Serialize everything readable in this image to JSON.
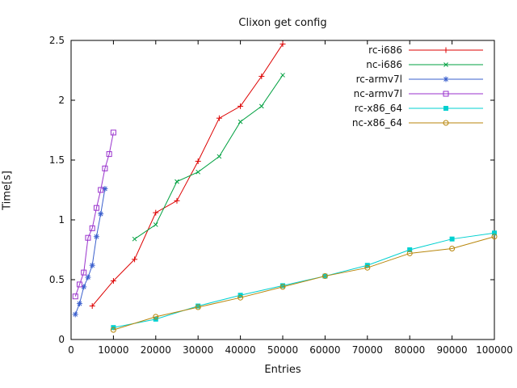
{
  "chart_data": {
    "type": "line",
    "title": "Clixon get config",
    "xlabel": "Entries",
    "ylabel": "Time[s]",
    "xlim": [
      0,
      100000
    ],
    "ylim": [
      0,
      2.5
    ],
    "grid": false,
    "legend_position": "top-right-inside",
    "x_ticks": [
      {
        "v": 0,
        "label": "0"
      },
      {
        "v": 10000,
        "label": "10000"
      },
      {
        "v": 20000,
        "label": "20000"
      },
      {
        "v": 30000,
        "label": "30000"
      },
      {
        "v": 40000,
        "label": "40000"
      },
      {
        "v": 50000,
        "label": "50000"
      },
      {
        "v": 60000,
        "label": "60000"
      },
      {
        "v": 70000,
        "label": "70000"
      },
      {
        "v": 80000,
        "label": "80000"
      },
      {
        "v": 90000,
        "label": "90000"
      },
      {
        "v": 100000,
        "label": "100000"
      }
    ],
    "y_ticks": [
      {
        "v": 0,
        "label": "0"
      },
      {
        "v": 0.5,
        "label": "0.5"
      },
      {
        "v": 1,
        "label": "1"
      },
      {
        "v": 1.5,
        "label": "1.5"
      },
      {
        "v": 2,
        "label": "2"
      },
      {
        "v": 2.5,
        "label": "2.5"
      }
    ],
    "series": [
      {
        "name": "rc-i686",
        "color": "#dd0000",
        "marker": "plus",
        "points": [
          [
            5000,
            0.28
          ],
          [
            10000,
            0.49
          ],
          [
            15000,
            0.67
          ],
          [
            20000,
            1.06
          ],
          [
            25000,
            1.16
          ],
          [
            30000,
            1.49
          ],
          [
            35000,
            1.85
          ],
          [
            40000,
            1.95
          ],
          [
            45000,
            2.2
          ],
          [
            50000,
            2.47
          ]
        ]
      },
      {
        "name": "nc-i686",
        "color": "#00a040",
        "marker": "cross",
        "points": [
          [
            15000,
            0.84
          ],
          [
            20000,
            0.96
          ],
          [
            25000,
            1.32
          ],
          [
            30000,
            1.4
          ],
          [
            35000,
            1.53
          ],
          [
            40000,
            1.82
          ],
          [
            45000,
            1.95
          ],
          [
            50000,
            2.21
          ]
        ]
      },
      {
        "name": "rc-armv7l",
        "color": "#3a5fcd",
        "marker": "asterisk",
        "points": [
          [
            1000,
            0.21
          ],
          [
            2000,
            0.3
          ],
          [
            3000,
            0.44
          ],
          [
            4000,
            0.52
          ],
          [
            5000,
            0.62
          ],
          [
            6000,
            0.86
          ],
          [
            7000,
            1.05
          ],
          [
            8000,
            1.26
          ]
        ]
      },
      {
        "name": "nc-armv7l",
        "color": "#9932cc",
        "marker": "square-open",
        "points": [
          [
            1000,
            0.36
          ],
          [
            2000,
            0.46
          ],
          [
            3000,
            0.56
          ],
          [
            4000,
            0.85
          ],
          [
            5000,
            0.93
          ],
          [
            6000,
            1.1
          ],
          [
            7000,
            1.25
          ],
          [
            8000,
            1.43
          ],
          [
            9000,
            1.55
          ],
          [
            10000,
            1.73
          ]
        ]
      },
      {
        "name": "rc-x86_64",
        "color": "#00d0d0",
        "marker": "square-filled",
        "points": [
          [
            10000,
            0.1
          ],
          [
            20000,
            0.17
          ],
          [
            30000,
            0.28
          ],
          [
            40000,
            0.37
          ],
          [
            50000,
            0.45
          ],
          [
            60000,
            0.53
          ],
          [
            70000,
            0.62
          ],
          [
            80000,
            0.75
          ],
          [
            90000,
            0.84
          ],
          [
            100000,
            0.89
          ]
        ]
      },
      {
        "name": "nc-x86_64",
        "color": "#b8860b",
        "marker": "circle-open",
        "points": [
          [
            10000,
            0.08
          ],
          [
            20000,
            0.19
          ],
          [
            30000,
            0.27
          ],
          [
            40000,
            0.35
          ],
          [
            50000,
            0.44
          ],
          [
            60000,
            0.53
          ],
          [
            70000,
            0.6
          ],
          [
            80000,
            0.72
          ],
          [
            90000,
            0.76
          ],
          [
            100000,
            0.86
          ]
        ]
      }
    ]
  }
}
